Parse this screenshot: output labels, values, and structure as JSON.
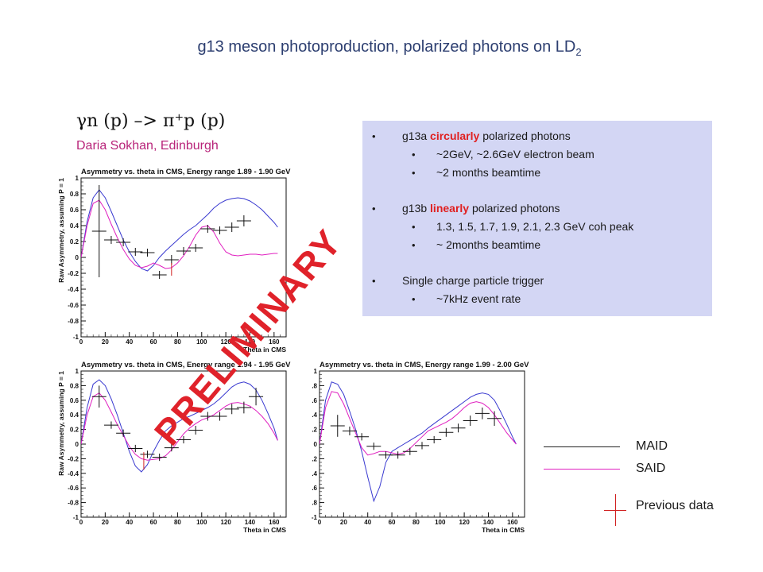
{
  "title": {
    "text": "g13 meson photoproduction, polarized photons on LD",
    "sub": "2"
  },
  "reaction": "γn (p) –> π⁺p (p)",
  "author": "Daria Sokhan, Edinburgh",
  "info": {
    "items": [
      {
        "level": 1,
        "parts": [
          {
            "t": "g13a "
          },
          {
            "t": "circularly",
            "hl": true
          },
          {
            "t": " polarized photons"
          }
        ]
      },
      {
        "level": 2,
        "parts": [
          {
            "t": "~2GeV, ~2.6GeV electron beam"
          }
        ]
      },
      {
        "level": 2,
        "parts": [
          {
            "t": "~2 months beamtime"
          }
        ]
      },
      {
        "gap": true
      },
      {
        "level": 1,
        "parts": [
          {
            "t": "g13b "
          },
          {
            "t": "linearly",
            "hl": true
          },
          {
            "t": " polarized photons"
          }
        ]
      },
      {
        "level": 2,
        "parts": [
          {
            "t": "1.3, 1.5, 1.7, 1.9, 2.1, 2.3 GeV coh peak"
          }
        ]
      },
      {
        "level": 2,
        "parts": [
          {
            "t": "~ 2months beamtime"
          }
        ]
      },
      {
        "gap": true
      },
      {
        "level": 1,
        "parts": [
          {
            "t": "Single charge particle trigger"
          }
        ]
      },
      {
        "level": 2,
        "parts": [
          {
            "t": " ~7kHz event rate"
          }
        ]
      }
    ]
  },
  "watermark": "PRELIMINARY",
  "legend": {
    "items": [
      {
        "label": "MAID",
        "color": "#222222",
        "kind": "line"
      },
      {
        "label": "SAID",
        "color": "#e020c0",
        "kind": "line"
      },
      {
        "label": "Previous data",
        "color": "#d02020",
        "kind": "cross"
      }
    ]
  },
  "colors": {
    "maid": "#3a3ad0",
    "said": "#e020c0",
    "data": "#111111",
    "box": "#d3d6f4"
  },
  "chart_data": [
    {
      "type": "scatter",
      "title": "Asymmetry vs. theta in CMS, Energy range 1.89 - 1.90 GeV",
      "xlabel": "Theta in CMS",
      "ylabel": "Raw Asymmetry, assuming P = 1",
      "xlim": [
        0,
        170
      ],
      "ylim": [
        -1,
        1
      ],
      "xticks": [
        0,
        20,
        40,
        60,
        80,
        100,
        120,
        140,
        160
      ],
      "yticks": [
        -1,
        -0.8,
        -0.6,
        -0.4,
        -0.2,
        0,
        0.2,
        0.4,
        0.6,
        0.8,
        1
      ],
      "ytick_labels": [
        "-1",
        "-0.8",
        "-0.6",
        "-0.4",
        "-0.2",
        "0",
        "0.2",
        "0.4",
        "0.6",
        "0.8",
        "1"
      ],
      "data": {
        "x": [
          15,
          25,
          35,
          45,
          55,
          65,
          75,
          85,
          95,
          105,
          115,
          125,
          135
        ],
        "y": [
          0.33,
          0.22,
          0.19,
          0.07,
          0.06,
          -0.22,
          -0.03,
          0.08,
          0.12,
          0.36,
          0.34,
          0.38,
          0.46
        ],
        "err": [
          0.58,
          0.05,
          0.05,
          0.05,
          0.05,
          0.05,
          0.06,
          0.05,
          0.05,
          0.05,
          0.05,
          0.06,
          0.07
        ]
      },
      "previous": [
        {
          "x": [
            75
          ],
          "y": [
            -0.15
          ],
          "err": [
            0.08
          ]
        }
      ],
      "series": [
        {
          "name": "MAID",
          "x": [
            0,
            5,
            10,
            15,
            20,
            25,
            30,
            35,
            40,
            45,
            50,
            55,
            60,
            65,
            70,
            75,
            80,
            85,
            90,
            95,
            100,
            105,
            110,
            115,
            120,
            125,
            130,
            135,
            140,
            145,
            150,
            155,
            160,
            163
          ],
          "y": [
            0.0,
            0.45,
            0.75,
            0.85,
            0.75,
            0.58,
            0.4,
            0.22,
            0.07,
            -0.05,
            -0.14,
            -0.17,
            -0.1,
            0.0,
            0.08,
            0.15,
            0.22,
            0.29,
            0.35,
            0.4,
            0.47,
            0.54,
            0.62,
            0.68,
            0.72,
            0.74,
            0.75,
            0.74,
            0.71,
            0.66,
            0.6,
            0.52,
            0.44,
            0.38
          ]
        },
        {
          "name": "SAID",
          "x": [
            0,
            5,
            10,
            15,
            20,
            25,
            30,
            35,
            40,
            45,
            50,
            55,
            60,
            65,
            70,
            75,
            80,
            85,
            90,
            95,
            100,
            105,
            110,
            115,
            120,
            125,
            130,
            135,
            140,
            145,
            150,
            155,
            160,
            163
          ],
          "y": [
            0.0,
            0.4,
            0.68,
            0.72,
            0.6,
            0.42,
            0.25,
            0.1,
            -0.02,
            -0.1,
            -0.13,
            -0.11,
            -0.07,
            -0.1,
            -0.14,
            -0.13,
            -0.07,
            0.02,
            0.14,
            0.28,
            0.38,
            0.4,
            0.32,
            0.18,
            0.07,
            0.03,
            0.02,
            0.03,
            0.04,
            0.04,
            0.03,
            0.04,
            0.05,
            0.05
          ]
        }
      ]
    },
    {
      "type": "scatter",
      "title": "Asymmetry vs. theta in CMS, Energy range 1.94 - 1.95 GeV",
      "xlabel": "Theta in CMS",
      "ylabel": "Raw Asymmetry, assuming P = 1",
      "xlim": [
        0,
        170
      ],
      "ylim": [
        -1,
        1
      ],
      "xticks": [
        0,
        20,
        40,
        60,
        80,
        100,
        120,
        140,
        160
      ],
      "yticks": [
        -1,
        -0.8,
        -0.6,
        -0.4,
        -0.2,
        0,
        0.2,
        0.4,
        0.6,
        0.8,
        1
      ],
      "ytick_labels": [
        "-1",
        "-0.8",
        "-0.6",
        "-0.4",
        "-0.2",
        "0",
        "0.2",
        "0.4",
        "0.6",
        "0.8",
        "1"
      ],
      "data": {
        "x": [
          15,
          25,
          35,
          45,
          55,
          65,
          75,
          85,
          95,
          105,
          115,
          125,
          135,
          145
        ],
        "y": [
          0.65,
          0.26,
          0.15,
          -0.06,
          -0.14,
          -0.18,
          -0.05,
          0.06,
          0.19,
          0.38,
          0.38,
          0.48,
          0.5,
          0.65
        ],
        "err": [
          0.15,
          0.05,
          0.05,
          0.05,
          0.05,
          0.05,
          0.05,
          0.05,
          0.06,
          0.06,
          0.06,
          0.07,
          0.08,
          0.12
        ]
      },
      "previous": [
        {
          "x": [
            52
          ],
          "y": [
            -0.23
          ],
          "err": [
            0.12
          ]
        }
      ],
      "series": [
        {
          "name": "MAID",
          "x": [
            0,
            5,
            10,
            15,
            20,
            25,
            30,
            35,
            40,
            45,
            50,
            55,
            60,
            65,
            70,
            75,
            80,
            85,
            90,
            95,
            100,
            105,
            110,
            115,
            120,
            125,
            130,
            135,
            140,
            145,
            150,
            155,
            160,
            163
          ],
          "y": [
            0.0,
            0.5,
            0.82,
            0.88,
            0.8,
            0.62,
            0.4,
            0.15,
            -0.1,
            -0.3,
            -0.38,
            -0.28,
            -0.1,
            0.05,
            0.18,
            0.25,
            0.3,
            0.35,
            0.38,
            0.42,
            0.46,
            0.5,
            0.55,
            0.62,
            0.7,
            0.78,
            0.83,
            0.85,
            0.82,
            0.74,
            0.6,
            0.42,
            0.22,
            0.05
          ]
        },
        {
          "name": "SAID",
          "x": [
            0,
            5,
            10,
            15,
            20,
            25,
            30,
            35,
            40,
            45,
            50,
            55,
            60,
            65,
            70,
            75,
            80,
            85,
            90,
            95,
            100,
            105,
            110,
            115,
            120,
            125,
            130,
            135,
            140,
            145,
            150,
            155,
            160,
            163
          ],
          "y": [
            0.0,
            0.4,
            0.65,
            0.7,
            0.6,
            0.44,
            0.27,
            0.12,
            -0.03,
            -0.14,
            -0.2,
            -0.22,
            -0.21,
            -0.2,
            -0.16,
            -0.08,
            0.03,
            0.14,
            0.22,
            0.28,
            0.33,
            0.36,
            0.4,
            0.46,
            0.52,
            0.56,
            0.57,
            0.55,
            0.52,
            0.46,
            0.38,
            0.28,
            0.15,
            0.05
          ]
        }
      ]
    },
    {
      "type": "scatter",
      "title": "Asymmetry vs. theta in CMS, Energy range 1.99 - 2.00 GeV",
      "xlabel": "Theta in CMS",
      "ylabel": "",
      "xlim": [
        0,
        170
      ],
      "ylim": [
        -1,
        1
      ],
      "xticks": [
        0,
        20,
        40,
        60,
        80,
        100,
        120,
        140,
        160
      ],
      "yticks": [
        -1,
        -0.8,
        -0.6,
        -0.4,
        -0.2,
        0,
        0.2,
        0.4,
        0.6,
        0.8,
        1
      ],
      "ytick_labels": [
        "-1",
        ".8",
        ".6",
        ".4",
        ".2",
        "0",
        ".2",
        ".4",
        ".6",
        ".8",
        "1"
      ],
      "data": {
        "x": [
          15,
          25,
          35,
          45,
          55,
          65,
          75,
          85,
          95,
          105,
          115,
          125,
          135,
          145
        ],
        "y": [
          0.25,
          0.18,
          0.1,
          -0.03,
          -0.15,
          -0.15,
          -0.1,
          -0.02,
          0.06,
          0.16,
          0.22,
          0.32,
          0.42,
          0.35
        ],
        "err": [
          0.15,
          0.06,
          0.05,
          0.05,
          0.05,
          0.05,
          0.05,
          0.05,
          0.05,
          0.06,
          0.06,
          0.07,
          0.08,
          0.1
        ]
      },
      "previous": [],
      "series": [
        {
          "name": "MAID",
          "x": [
            0,
            5,
            10,
            15,
            20,
            25,
            30,
            35,
            40,
            45,
            50,
            55,
            60,
            65,
            70,
            75,
            80,
            85,
            90,
            95,
            100,
            105,
            110,
            115,
            120,
            125,
            130,
            135,
            140,
            145,
            150,
            155,
            160,
            163
          ],
          "y": [
            0.0,
            0.6,
            0.85,
            0.82,
            0.68,
            0.45,
            0.2,
            -0.1,
            -0.45,
            -0.78,
            -0.58,
            -0.25,
            -0.1,
            -0.05,
            0.0,
            0.05,
            0.1,
            0.15,
            0.22,
            0.28,
            0.34,
            0.4,
            0.46,
            0.52,
            0.58,
            0.64,
            0.68,
            0.7,
            0.68,
            0.6,
            0.45,
            0.28,
            0.1,
            0.0
          ]
        },
        {
          "name": "SAID",
          "x": [
            0,
            5,
            10,
            15,
            20,
            25,
            30,
            35,
            40,
            45,
            50,
            55,
            60,
            65,
            70,
            75,
            80,
            85,
            90,
            95,
            100,
            105,
            110,
            115,
            120,
            125,
            130,
            135,
            140,
            145,
            150,
            155,
            160,
            163
          ],
          "y": [
            0.0,
            0.5,
            0.72,
            0.7,
            0.55,
            0.35,
            0.15,
            -0.05,
            -0.15,
            -0.13,
            -0.1,
            -0.1,
            -0.12,
            -0.14,
            -0.12,
            -0.06,
            0.02,
            0.1,
            0.18,
            0.22,
            0.26,
            0.3,
            0.35,
            0.42,
            0.5,
            0.56,
            0.58,
            0.56,
            0.5,
            0.4,
            0.28,
            0.16,
            0.06,
            0.0
          ]
        }
      ]
    }
  ]
}
